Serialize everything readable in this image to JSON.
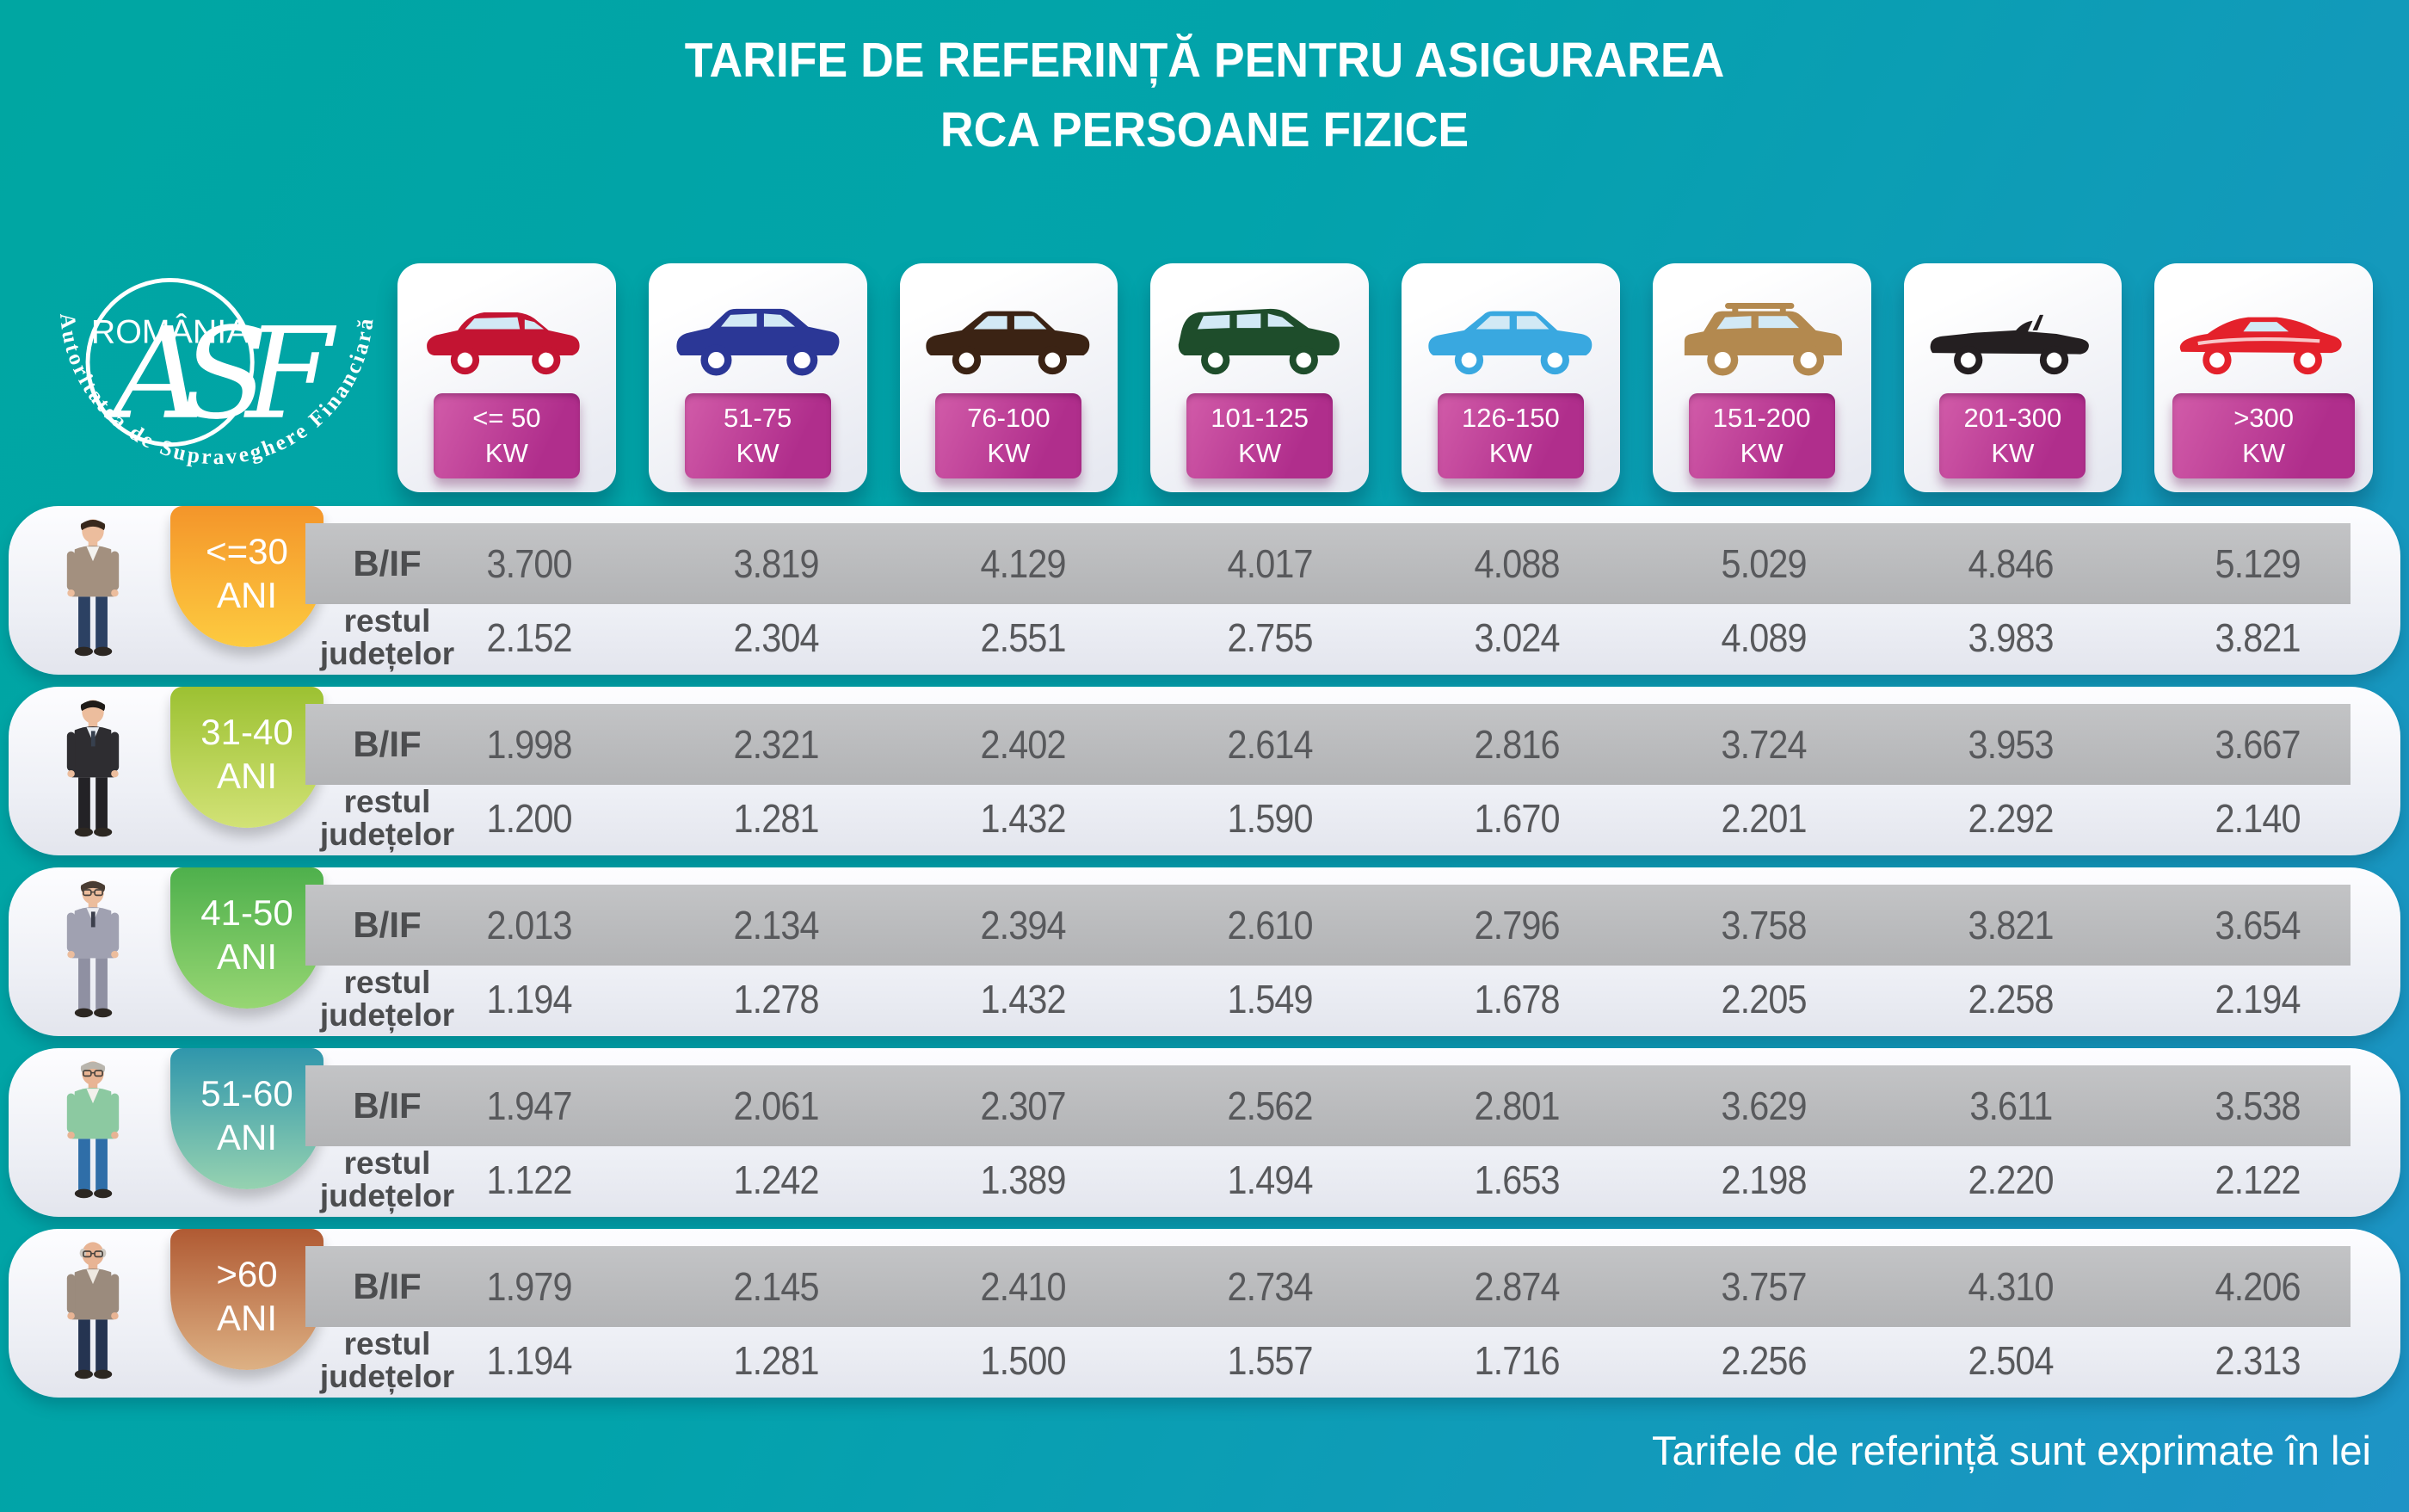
{
  "title": {
    "line1": "TARIFE DE REFERINȚĂ PENTRU ASIGURAREA",
    "line2": "RCA PERSOANE FIZICE"
  },
  "logo": {
    "country": "ROMÂNIA",
    "monogram": "ASF",
    "org": "Autoritatea de Supraveghere Financiară"
  },
  "power_categories": [
    {
      "icon": "hatchback",
      "color": "#c31432",
      "range": "<= 50",
      "unit": "KW"
    },
    {
      "icon": "crossover",
      "color": "#2b3796",
      "range": "51-75",
      "unit": "KW"
    },
    {
      "icon": "sedan",
      "color": "#3b2314",
      "range": "76-100",
      "unit": "KW"
    },
    {
      "icon": "minivan",
      "color": "#1e4d2b",
      "range": "101-125",
      "unit": "KW"
    },
    {
      "icon": "sedan",
      "color": "#39a8e0",
      "range": "126-150",
      "unit": "KW"
    },
    {
      "icon": "suv",
      "color": "#b3894f",
      "range": "151-200",
      "unit": "KW"
    },
    {
      "icon": "convertible",
      "color": "#241f21",
      "range": "201-300",
      "unit": "KW"
    },
    {
      "icon": "sports",
      "color": "#e4212b",
      "range": ">300",
      "unit": "KW"
    }
  ],
  "row_labels": {
    "bif": "B/IF",
    "rest_line1": "restul",
    "rest_line2": "județelor"
  },
  "age_groups": [
    {
      "range": "<=30",
      "unit": "ANI",
      "person": "young-man",
      "badge_from": "#f4952a",
      "badge_to": "#fdcb40",
      "bif": [
        "3.700",
        "3.819",
        "4.129",
        "4.017",
        "4.088",
        "5.029",
        "4.846",
        "5.129"
      ],
      "rest": [
        "2.152",
        "2.304",
        "2.551",
        "2.755",
        "3.024",
        "4.089",
        "3.983",
        "3.821"
      ]
    },
    {
      "range": "31-40",
      "unit": "ANI",
      "person": "man-black-suit",
      "badge_from": "#9cc132",
      "badge_to": "#d2e276",
      "bif": [
        "1.998",
        "2.321",
        "2.402",
        "2.614",
        "2.816",
        "3.724",
        "3.953",
        "3.667"
      ],
      "rest": [
        "1.200",
        "1.281",
        "1.432",
        "1.590",
        "1.670",
        "2.201",
        "2.292",
        "2.140"
      ]
    },
    {
      "range": "41-50",
      "unit": "ANI",
      "person": "man-gray-suit",
      "badge_from": "#4eb04c",
      "badge_to": "#97d673",
      "bif": [
        "2.013",
        "2.134",
        "2.394",
        "2.610",
        "2.796",
        "3.758",
        "3.821",
        "3.654"
      ],
      "rest": [
        "1.194",
        "1.278",
        "1.432",
        "1.549",
        "1.678",
        "2.205",
        "2.258",
        "2.194"
      ]
    },
    {
      "range": "51-60",
      "unit": "ANI",
      "person": "man-green-vest",
      "badge_from": "#2f96ac",
      "badge_to": "#96d2b0",
      "bif": [
        "1.947",
        "2.061",
        "2.307",
        "2.562",
        "2.801",
        "3.629",
        "3.611",
        "3.538"
      ],
      "rest": [
        "1.122",
        "1.242",
        "1.389",
        "1.494",
        "1.653",
        "2.198",
        "2.220",
        "2.122"
      ]
    },
    {
      "range": ">60",
      "unit": "ANI",
      "person": "elder-man",
      "badge_from": "#b05a33",
      "badge_to": "#ddb184",
      "bif": [
        "1.979",
        "2.145",
        "2.410",
        "2.734",
        "2.874",
        "3.757",
        "4.310",
        "4.206"
      ],
      "rest": [
        "1.194",
        "1.281",
        "1.500",
        "1.557",
        "1.716",
        "2.256",
        "2.504",
        "2.313"
      ]
    }
  ],
  "footer": {
    "note": "Tarifele de referință sunt exprimate în lei"
  },
  "chart_data": {
    "type": "table",
    "title": "TARIFE DE REFERINȚĂ PENTRU ASIGURAREA RCA PERSOANE FIZICE",
    "unit": "lei",
    "columns": [
      "<= 50 KW",
      "51-75 KW",
      "76-100 KW",
      "101-125 KW",
      "126-150 KW",
      "151-200 KW",
      "201-300 KW",
      ">300 KW"
    ],
    "row_groups": [
      {
        "age": "<=30 ANI",
        "B/IF": [
          3700,
          3819,
          4129,
          4017,
          4088,
          5029,
          4846,
          5129
        ],
        "restul_judetelor": [
          2152,
          2304,
          2551,
          2755,
          3024,
          4089,
          3983,
          3821
        ]
      },
      {
        "age": "31-40 ANI",
        "B/IF": [
          1998,
          2321,
          2402,
          2614,
          2816,
          3724,
          3953,
          3667
        ],
        "restul_judetelor": [
          1200,
          1281,
          1432,
          1590,
          1670,
          2201,
          2292,
          2140
        ]
      },
      {
        "age": "41-50 ANI",
        "B/IF": [
          2013,
          2134,
          2394,
          2610,
          2796,
          3758,
          3821,
          3654
        ],
        "restul_judetelor": [
          1194,
          1278,
          1432,
          1549,
          1678,
          2205,
          2258,
          2194
        ]
      },
      {
        "age": "51-60 ANI",
        "B/IF": [
          1947,
          2061,
          2307,
          2562,
          2801,
          3629,
          3611,
          3538
        ],
        "restul_judetelor": [
          1122,
          1242,
          1389,
          1494,
          1653,
          2198,
          2220,
          2122
        ]
      },
      {
        "age": ">60 ANI",
        "B/IF": [
          1979,
          2145,
          2410,
          2734,
          2874,
          3757,
          4310,
          4206
        ],
        "restul_judetelor": [
          1194,
          1281,
          1500,
          1557,
          1716,
          2256,
          2504,
          2313
        ]
      }
    ],
    "note": "Tarifele de referință sunt exprimate în lei"
  }
}
